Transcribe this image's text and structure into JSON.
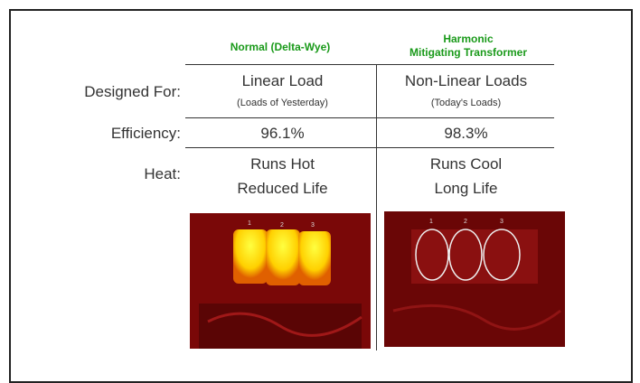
{
  "table": {
    "headers": [
      "Normal (Delta-Wye)",
      "Harmonic",
      "Mitigating Transformer"
    ],
    "rows": [
      {
        "label": "Designed For:",
        "cells": [
          [
            "Linear Load",
            "(Loads of Yesterday)"
          ],
          [
            "Non-Linear Loads",
            "(Today's Loads)"
          ]
        ]
      },
      {
        "label": "Efficiency:",
        "cells": [
          [
            "96.1%"
          ],
          [
            "98.3%"
          ]
        ]
      },
      {
        "label": "Heat:",
        "cells": [
          [
            "Runs Hot",
            "Reduced Life"
          ],
          [
            "Runs Cool",
            "Long Life"
          ]
        ]
      }
    ]
  },
  "thermal_images": [
    {
      "markers": [
        "1",
        "2",
        "3"
      ]
    },
    {
      "markers": [
        "1",
        "2",
        "3"
      ]
    }
  ]
}
